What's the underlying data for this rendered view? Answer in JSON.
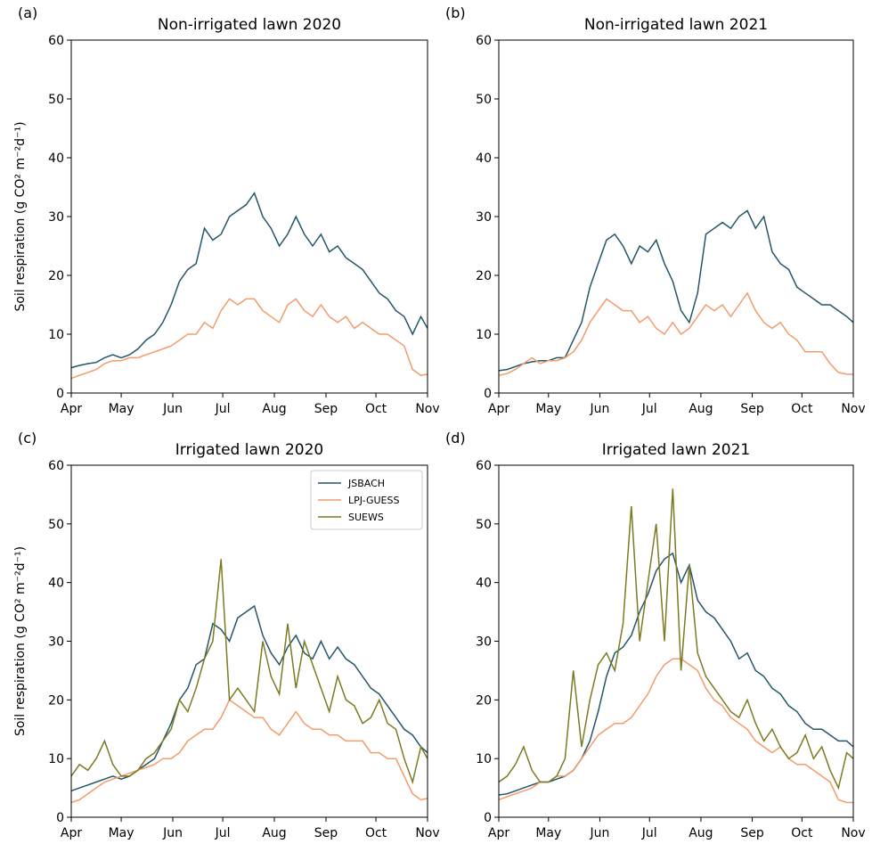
{
  "chart_data": [
    {
      "type": "line",
      "panel_label": "(a)",
      "title": "Non-irrigated lawn 2020",
      "y_label": "Soil respiration (g CO² m⁻²d⁻¹)",
      "x": [
        0,
        5,
        10,
        15,
        20,
        25,
        30,
        35,
        40,
        45,
        50,
        55,
        60,
        65,
        70,
        75,
        80,
        85,
        90,
        95,
        100,
        105,
        110,
        115,
        120,
        125,
        130,
        135,
        140,
        145,
        150,
        155,
        160,
        165,
        170,
        175,
        180,
        185,
        190,
        195,
        200,
        205,
        210,
        214
      ],
      "xlim": [
        0,
        214
      ],
      "xticks": [
        {
          "value": 0,
          "label": "Apr"
        },
        {
          "value": 30,
          "label": "May"
        },
        {
          "value": 61,
          "label": "Jun"
        },
        {
          "value": 91,
          "label": "Jul"
        },
        {
          "value": 122,
          "label": "Aug"
        },
        {
          "value": 153,
          "label": "Sep"
        },
        {
          "value": 183,
          "label": "Oct"
        },
        {
          "value": 214,
          "label": "Nov"
        }
      ],
      "ylim": [
        0,
        60
      ],
      "yticks": [
        0,
        10,
        20,
        30,
        40,
        50,
        60
      ],
      "series": [
        {
          "name": "JSBACH",
          "color": "#24566b",
          "values": [
            4.3,
            4.7,
            5,
            5.2,
            6,
            6.5,
            6,
            6.5,
            7.5,
            9,
            10,
            12,
            15,
            19,
            21,
            22,
            28,
            26,
            27,
            30,
            31,
            32,
            34,
            30,
            28,
            25,
            27,
            30,
            27,
            25,
            27,
            24,
            25,
            23,
            22,
            21,
            19,
            17,
            16,
            14,
            13,
            10,
            13,
            11
          ]
        },
        {
          "name": "LPJ-GUESS",
          "color": "#f39c6b",
          "values": [
            2.5,
            3,
            3.5,
            4,
            5,
            5.5,
            5.5,
            6,
            6,
            6.5,
            7,
            7.5,
            8,
            9,
            10,
            10,
            12,
            11,
            14,
            16,
            15,
            16,
            16,
            14,
            13,
            12,
            15,
            16,
            14,
            13,
            15,
            13,
            12,
            13,
            11,
            12,
            11,
            10,
            10,
            9,
            8,
            4,
            3,
            3.2
          ]
        }
      ]
    },
    {
      "type": "line",
      "panel_label": "(b)",
      "title": "Non-irrigated lawn 2021",
      "x": [
        0,
        5,
        10,
        15,
        20,
        25,
        30,
        35,
        40,
        45,
        50,
        55,
        60,
        65,
        70,
        75,
        80,
        85,
        90,
        95,
        100,
        105,
        110,
        115,
        120,
        125,
        130,
        135,
        140,
        145,
        150,
        155,
        160,
        165,
        170,
        175,
        180,
        185,
        190,
        195,
        200,
        205,
        210,
        214
      ],
      "xlim": [
        0,
        214
      ],
      "xticks": [
        {
          "value": 0,
          "label": "Apr"
        },
        {
          "value": 30,
          "label": "May"
        },
        {
          "value": 61,
          "label": "Jun"
        },
        {
          "value": 91,
          "label": "Jul"
        },
        {
          "value": 122,
          "label": "Aug"
        },
        {
          "value": 153,
          "label": "Sep"
        },
        {
          "value": 183,
          "label": "Oct"
        },
        {
          "value": 214,
          "label": "Nov"
        }
      ],
      "ylim": [
        0,
        60
      ],
      "yticks": [
        0,
        10,
        20,
        30,
        40,
        50,
        60
      ],
      "series": [
        {
          "name": "JSBACH",
          "color": "#24566b",
          "values": [
            3.8,
            4,
            4.5,
            5,
            5.3,
            5.5,
            5.5,
            6,
            6,
            9,
            12,
            18,
            22,
            26,
            27,
            25,
            22,
            25,
            24,
            26,
            22,
            19,
            14,
            12,
            17,
            27,
            28,
            29,
            28,
            30,
            31,
            28,
            30,
            24,
            22,
            21,
            18,
            17,
            16,
            15,
            15,
            14,
            13,
            12
          ]
        },
        {
          "name": "LPJ-GUESS",
          "color": "#f39c6b",
          "values": [
            3,
            3.3,
            4,
            5,
            6,
            5,
            5.5,
            5.5,
            6,
            7,
            9,
            12,
            14,
            16,
            15,
            14,
            14,
            12,
            13,
            11,
            10,
            12,
            10,
            11,
            13,
            15,
            14,
            15,
            13,
            15,
            17,
            14,
            12,
            11,
            12,
            10,
            9,
            7,
            7,
            7,
            5,
            3.5,
            3.2,
            3.2
          ]
        }
      ]
    },
    {
      "type": "line",
      "panel_label": "(c)",
      "title": "Irrigated lawn 2020",
      "y_label": "Soil respiration (g CO² m⁻²d⁻¹)",
      "legend": "upper right",
      "x": [
        0,
        5,
        10,
        15,
        20,
        25,
        30,
        35,
        40,
        45,
        50,
        55,
        60,
        65,
        70,
        75,
        80,
        85,
        90,
        95,
        100,
        105,
        110,
        115,
        120,
        125,
        130,
        135,
        140,
        145,
        150,
        155,
        160,
        165,
        170,
        175,
        180,
        185,
        190,
        195,
        200,
        205,
        210,
        214
      ],
      "xlim": [
        0,
        214
      ],
      "xticks": [
        {
          "value": 0,
          "label": "Apr"
        },
        {
          "value": 30,
          "label": "May"
        },
        {
          "value": 61,
          "label": "Jun"
        },
        {
          "value": 91,
          "label": "Jul"
        },
        {
          "value": 122,
          "label": "Aug"
        },
        {
          "value": 153,
          "label": "Sep"
        },
        {
          "value": 183,
          "label": "Oct"
        },
        {
          "value": 214,
          "label": "Nov"
        }
      ],
      "ylim": [
        0,
        60
      ],
      "yticks": [
        0,
        10,
        20,
        30,
        40,
        50,
        60
      ],
      "series": [
        {
          "name": "JSBACH",
          "color": "#24566b",
          "values": [
            4.5,
            5,
            5.5,
            6,
            6.5,
            7,
            6.5,
            7,
            8,
            9,
            10,
            13,
            16,
            20,
            22,
            26,
            27,
            33,
            32,
            30,
            34,
            35,
            36,
            31,
            28,
            26,
            29,
            31,
            28,
            27,
            30,
            27,
            29,
            27,
            26,
            24,
            22,
            21,
            19,
            17,
            15,
            14,
            12,
            11
          ]
        },
        {
          "name": "LPJ-GUESS",
          "color": "#f39c6b",
          "values": [
            2.5,
            3,
            4,
            5,
            6,
            6.5,
            7,
            7.5,
            8,
            8.5,
            9,
            10,
            10,
            11,
            13,
            14,
            15,
            15,
            17,
            20,
            19,
            18,
            17,
            17,
            15,
            14,
            16,
            18,
            16,
            15,
            15,
            14,
            14,
            13,
            13,
            13,
            11,
            11,
            10,
            10,
            7,
            4,
            3,
            3.2
          ]
        },
        {
          "name": "SUEWS",
          "color": "#7d7a22",
          "values": [
            7,
            9,
            8,
            10,
            13,
            9,
            7,
            7,
            8,
            10,
            11,
            13,
            15,
            20,
            18,
            22,
            27,
            30,
            44,
            20,
            22,
            20,
            18,
            30,
            24,
            21,
            33,
            22,
            30,
            26,
            22,
            18,
            24,
            20,
            19,
            16,
            17,
            20,
            16,
            15,
            10,
            6,
            12,
            10
          ]
        }
      ]
    },
    {
      "type": "line",
      "panel_label": "(d)",
      "title": "Irrigated lawn 2021",
      "x": [
        0,
        5,
        10,
        15,
        20,
        25,
        30,
        35,
        40,
        45,
        50,
        55,
        60,
        65,
        70,
        75,
        80,
        85,
        90,
        95,
        100,
        105,
        110,
        115,
        120,
        125,
        130,
        135,
        140,
        145,
        150,
        155,
        160,
        165,
        170,
        175,
        180,
        185,
        190,
        195,
        200,
        205,
        210,
        214
      ],
      "xlim": [
        0,
        214
      ],
      "xticks": [
        {
          "value": 0,
          "label": "Apr"
        },
        {
          "value": 30,
          "label": "May"
        },
        {
          "value": 61,
          "label": "Jun"
        },
        {
          "value": 91,
          "label": "Jul"
        },
        {
          "value": 122,
          "label": "Aug"
        },
        {
          "value": 153,
          "label": "Sep"
        },
        {
          "value": 183,
          "label": "Oct"
        },
        {
          "value": 214,
          "label": "Nov"
        }
      ],
      "ylim": [
        0,
        60
      ],
      "yticks": [
        0,
        10,
        20,
        30,
        40,
        50,
        60
      ],
      "series": [
        {
          "name": "JSBACH",
          "color": "#24566b",
          "values": [
            3.8,
            4,
            4.5,
            5,
            5.5,
            6,
            6,
            6.5,
            7,
            8,
            10,
            13,
            18,
            24,
            28,
            29,
            31,
            35,
            38,
            42,
            44,
            45,
            40,
            43,
            37,
            35,
            34,
            32,
            30,
            27,
            28,
            25,
            24,
            22,
            21,
            19,
            18,
            16,
            15,
            15,
            14,
            13,
            13,
            12
          ]
        },
        {
          "name": "LPJ-GUESS",
          "color": "#f39c6b",
          "values": [
            3,
            3.5,
            4,
            4.5,
            5,
            6,
            6,
            7,
            7,
            8,
            10,
            12,
            14,
            15,
            16,
            16,
            17,
            19,
            21,
            24,
            26,
            27,
            27,
            26,
            25,
            22,
            20,
            19,
            17,
            16,
            15,
            13,
            12,
            11,
            12,
            10,
            9,
            9,
            8,
            7,
            6,
            3,
            2.5,
            2.5
          ]
        },
        {
          "name": "SUEWS",
          "color": "#7d7a22",
          "values": [
            6,
            7,
            9,
            12,
            8,
            6,
            6,
            7,
            10,
            25,
            12,
            20,
            26,
            28,
            25,
            33,
            53,
            30,
            40,
            50,
            30,
            56,
            25,
            43,
            28,
            24,
            22,
            20,
            18,
            17,
            20,
            16,
            13,
            15,
            12,
            10,
            11,
            14,
            10,
            12,
            8,
            5,
            11,
            10
          ]
        }
      ]
    }
  ]
}
